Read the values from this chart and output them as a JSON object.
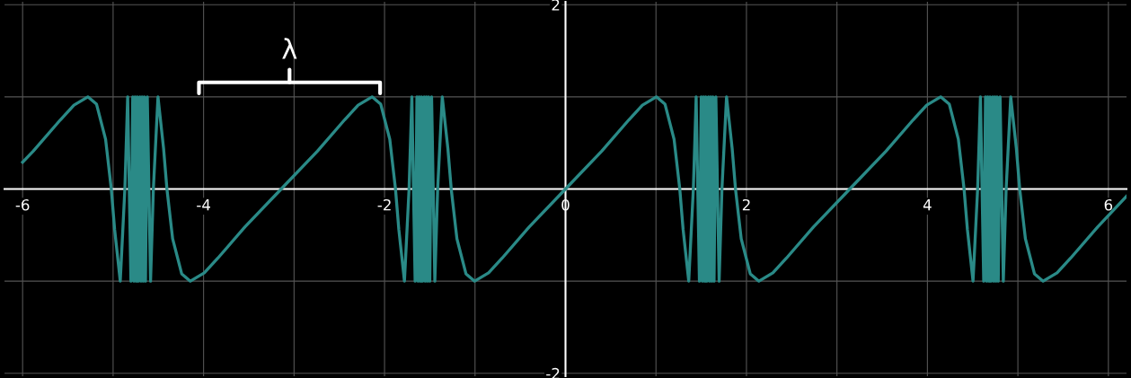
{
  "chart_data": {
    "type": "line",
    "x": [
      -6.0,
      -5.883,
      -5.583,
      -5.433,
      -5.279,
      -5.183,
      -5.083,
      -5.02,
      -4.983,
      -4.921,
      -4.87,
      -4.839,
      -4.803,
      -4.783,
      -4.77,
      -4.758,
      -4.745,
      -4.733,
      -4.721,
      -4.704,
      -4.692,
      -4.68,
      -4.667,
      -4.655,
      -4.642,
      -4.622,
      -4.586,
      -4.555,
      -4.504,
      -4.442,
      -4.405,
      -4.342,
      -4.242,
      -4.146,
      -3.992,
      -3.842,
      -3.542,
      -3.142,
      -2.742,
      -2.442,
      -2.292,
      -2.138,
      -2.042,
      -1.942,
      -1.879,
      -1.842,
      -1.78,
      -1.729,
      -1.698,
      -1.662,
      -1.642,
      -1.629,
      -1.617,
      -1.604,
      -1.592,
      -1.58,
      -1.562,
      -1.55,
      -1.538,
      -1.525,
      -1.513,
      -1.5,
      -1.48,
      -1.444,
      -1.413,
      -1.362,
      -1.3,
      -1.263,
      -1.2,
      -1.1,
      -1.004,
      -0.85,
      -0.7,
      -0.4,
      0,
      0.4,
      0.7,
      0.85,
      1.004,
      1.1,
      1.2,
      1.263,
      1.3,
      1.362,
      1.413,
      1.444,
      1.48,
      1.5,
      1.513,
      1.525,
      1.538,
      1.55,
      1.562,
      1.58,
      1.592,
      1.604,
      1.617,
      1.629,
      1.642,
      1.662,
      1.698,
      1.729,
      1.78,
      1.842,
      1.879,
      1.942,
      2.042,
      2.138,
      2.292,
      2.442,
      2.742,
      3.142,
      3.542,
      3.842,
      3.992,
      4.146,
      4.242,
      4.342,
      4.405,
      4.442,
      4.504,
      4.555,
      4.586,
      4.622,
      4.642,
      4.655,
      4.667,
      4.68,
      4.692,
      4.704,
      4.721,
      4.733,
      4.745,
      4.758,
      4.77,
      4.783,
      4.803,
      4.839,
      4.87,
      4.921,
      4.983,
      5.02,
      5.083,
      5.183,
      5.279,
      5.433,
      5.583,
      5.883,
      6.2
    ],
    "series": [
      {
        "color": "#2a8a87",
        "values": [
          0.29,
          0.41,
          0.75,
          0.91,
          1,
          0.92,
          0.54,
          0,
          -0.44,
          -1,
          0,
          1,
          -1,
          1,
          -1,
          1,
          -1,
          1,
          -1,
          1,
          -1,
          1,
          -1,
          1,
          -1,
          1,
          -1,
          0,
          1,
          0.44,
          0,
          -0.54,
          -0.92,
          -1,
          -0.91,
          -0.75,
          -0.41,
          0,
          0.41,
          0.75,
          0.91,
          1,
          0.92,
          0.54,
          0,
          -0.44,
          -1,
          0,
          1,
          -1,
          1,
          -1,
          1,
          -1,
          1,
          -1,
          1,
          -1,
          1,
          -1,
          1,
          -1,
          1,
          -1,
          0,
          1,
          0.44,
          0,
          -0.54,
          -0.92,
          -1,
          -0.91,
          -0.75,
          -0.41,
          0,
          0.41,
          0.75,
          0.91,
          1,
          0.92,
          0.54,
          0,
          -0.44,
          -1,
          0,
          1,
          -1,
          1,
          -1,
          1,
          -1,
          1,
          -1,
          1,
          -1,
          1,
          -1,
          1,
          -1,
          1,
          -1,
          0,
          1,
          0.44,
          0,
          -0.54,
          -0.92,
          -1,
          -0.91,
          -0.75,
          -0.41,
          0,
          0.41,
          0.75,
          0.91,
          1,
          0.92,
          0.54,
          0,
          -0.44,
          -1,
          0,
          1,
          -1,
          1,
          -1,
          1,
          -1,
          1,
          -1,
          1,
          -1,
          1,
          -1,
          1,
          -1,
          1,
          -1,
          0,
          1,
          0.44,
          0,
          -0.54,
          -0.92,
          -1,
          -0.91,
          -0.75,
          -0.41,
          -0.08
        ]
      }
    ],
    "xlim": [
      -6.2,
      6.2
    ],
    "ylim": [
      -2.03,
      2.03
    ],
    "xticks": [
      -6,
      {
        "value": -5,
        "label": null
      },
      -4,
      {
        "value": -3,
        "label": null
      },
      -2,
      {
        "value": -1,
        "label": null
      },
      0,
      {
        "value": 1,
        "label": null
      },
      2,
      {
        "value": 3,
        "label": null
      },
      4,
      {
        "value": 5,
        "label": null
      },
      6
    ],
    "yticks": [
      -2,
      {
        "value": -1,
        "label": null
      },
      {
        "value": 1,
        "label": null
      },
      2
    ],
    "grid": true,
    "line_style": "solid",
    "marker": "none",
    "annotations": [
      "λ"
    ]
  }
}
